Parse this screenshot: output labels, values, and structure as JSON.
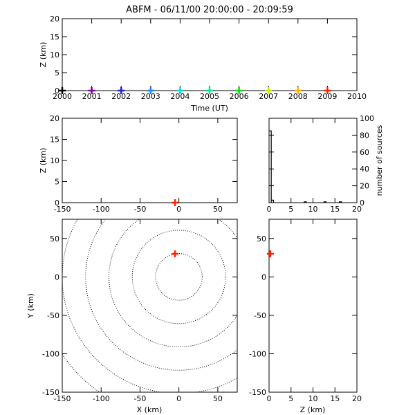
{
  "title": "ABFM - 06/11/00 20:00:00 - 20:09:59",
  "chart_data": [
    {
      "id": "time_height",
      "type": "scatter",
      "xlabel": "Time (UT)",
      "ylabel": "Z (km)",
      "xlim": [
        2000,
        2010
      ],
      "ylim": [
        0,
        20
      ],
      "xticks": [
        "2000",
        "2001",
        "2002",
        "2003",
        "2004",
        "2005",
        "2006",
        "2007",
        "2008",
        "2009",
        "2010"
      ],
      "yticks": [
        "0",
        "5",
        "10",
        "15",
        "20"
      ],
      "points": [
        {
          "x": 2000.0,
          "y": 0,
          "color": "#000000"
        },
        {
          "x": 2001.0,
          "y": 0,
          "color": "#7f00a0"
        },
        {
          "x": 2002.0,
          "y": 0,
          "color": "#2020e0"
        },
        {
          "x": 2003.0,
          "y": 0,
          "color": "#2080ff"
        },
        {
          "x": 2004.0,
          "y": 0,
          "color": "#00e0e0"
        },
        {
          "x": 2005.0,
          "y": 0,
          "color": "#00e0a0"
        },
        {
          "x": 2006.0,
          "y": 0,
          "color": "#00e000"
        },
        {
          "x": 2007.0,
          "y": 0,
          "color": "#c0f000"
        },
        {
          "x": 2008.0,
          "y": 0,
          "color": "#ffb000"
        },
        {
          "x": 2009.0,
          "y": 0,
          "color": "#ff2000"
        }
      ]
    },
    {
      "id": "x_height",
      "type": "scatter",
      "xlabel": "",
      "ylabel": "Z (km)",
      "xlim": [
        -150,
        75
      ],
      "ylim": [
        0,
        20
      ],
      "xticks": [
        "-150",
        "-100",
        "-50",
        "0",
        "50"
      ],
      "yticks": [
        "0",
        "5",
        "10",
        "15",
        "20"
      ],
      "points": [
        {
          "x": -5,
          "y": 0,
          "color": "#ff2000"
        }
      ]
    },
    {
      "id": "altitude_histogram",
      "type": "bar",
      "xlabel": "",
      "ylabel": "number of sources",
      "xlim": [
        0,
        20
      ],
      "ylim": [
        0,
        100
      ],
      "xticks": [
        "0",
        "5",
        "10",
        "15",
        "20"
      ],
      "yticks": [
        "0",
        "20",
        "40",
        "60",
        "80",
        "100"
      ],
      "bin_width": 0.5,
      "bins": [
        0,
        0.5,
        1,
        1.5,
        2,
        2.5,
        3,
        3.5,
        4,
        4.5,
        5,
        5.5,
        6,
        6.5,
        7,
        7.5,
        8,
        8.5,
        9,
        9.5,
        10,
        10.5,
        11,
        11.5,
        12,
        12.5,
        13,
        13.5,
        14,
        14.5,
        15,
        15.5,
        16,
        16.5,
        17,
        17.5,
        18,
        18.5,
        19,
        19.5
      ],
      "values": [
        85,
        3,
        0,
        0,
        0,
        0,
        0,
        0,
        0,
        0,
        0,
        0,
        0,
        0,
        0,
        0,
        1,
        0,
        0,
        0,
        0,
        0,
        0,
        0,
        0,
        1,
        0,
        0,
        0,
        0,
        0,
        0,
        1,
        0,
        0,
        0,
        0,
        0,
        0,
        0
      ]
    },
    {
      "id": "plan_view",
      "type": "scatter",
      "xlabel": "X (km)",
      "ylabel": "Y (km)",
      "xlim": [
        -150,
        75
      ],
      "ylim": [
        -150,
        75
      ],
      "xticks": [
        "-150",
        "-100",
        "-50",
        "0",
        "50"
      ],
      "yticks": [
        "-150",
        "-100",
        "-50",
        "0",
        "50"
      ],
      "range_rings_km": [
        30,
        60,
        90,
        120,
        150,
        180
      ],
      "ring_center": [
        0,
        0
      ],
      "points": [
        {
          "x": -5,
          "y": 30,
          "color": "#ff2000"
        }
      ]
    },
    {
      "id": "height_y",
      "type": "scatter",
      "xlabel": "Z (km)",
      "ylabel": "",
      "xlim": [
        0,
        20
      ],
      "ylim": [
        -150,
        75
      ],
      "xticks": [
        "0",
        "5",
        "10",
        "15",
        "20"
      ],
      "yticks": [
        "-150",
        "-100",
        "-50",
        "0",
        "50"
      ],
      "points": [
        {
          "x": 0.3,
          "y": 30,
          "color": "#ff2000"
        }
      ]
    }
  ]
}
